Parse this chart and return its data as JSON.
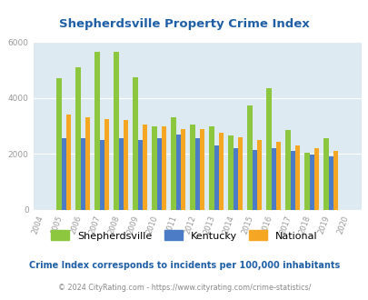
{
  "title": "Shepherdsville Property Crime Index",
  "years": [
    2004,
    2005,
    2006,
    2007,
    2008,
    2009,
    2010,
    2011,
    2012,
    2013,
    2014,
    2015,
    2016,
    2017,
    2018,
    2019,
    2020
  ],
  "shepherdsville": [
    null,
    4700,
    5100,
    5650,
    5650,
    4750,
    3000,
    3300,
    3050,
    3000,
    2650,
    3750,
    4350,
    2850,
    2050,
    2550,
    null
  ],
  "kentucky": [
    null,
    2550,
    2550,
    2500,
    2550,
    2500,
    2550,
    2700,
    2550,
    2300,
    2200,
    2150,
    2200,
    2100,
    1980,
    1920,
    null
  ],
  "national": [
    null,
    3400,
    3300,
    3250,
    3200,
    3050,
    3000,
    2900,
    2880,
    2750,
    2600,
    2490,
    2430,
    2300,
    2200,
    2120,
    null
  ],
  "shepherdsville_color": "#8dc63f",
  "kentucky_color": "#4d7cc7",
  "national_color": "#f5a623",
  "background_color": "#deeaf1",
  "ylim": [
    0,
    6000
  ],
  "yticks": [
    0,
    2000,
    4000,
    6000
  ],
  "subtitle": "Crime Index corresponds to incidents per 100,000 inhabitants",
  "footer": "© 2024 CityRating.com - https://www.cityrating.com/crime-statistics/",
  "title_color": "#1f5fa6",
  "subtitle_color": "#1f5fa6",
  "footer_color": "#888888",
  "grid_color": "#ffffff",
  "tick_color": "#999999",
  "bar_width": 0.25,
  "figsize": [
    4.06,
    3.3
  ],
  "dpi": 100
}
